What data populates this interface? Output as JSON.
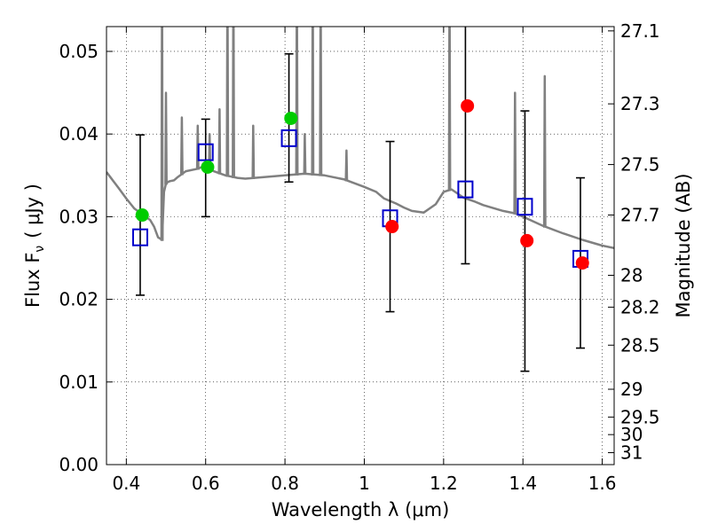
{
  "chart_data": {
    "type": "scatter",
    "xlabel": "Wavelength  λ (μm)",
    "ylabel": "Flux  F",
    "ylabel_sub": "ν",
    "ylabel_unit": "( μJy )",
    "ylabel_right": "Magnitude (AB)",
    "xlim": [
      0.35,
      1.63
    ],
    "ylim": [
      0.0,
      0.053
    ],
    "grid": true,
    "x_ticks": [
      {
        "value": 0.4,
        "label": "0.4"
      },
      {
        "value": 0.6,
        "label": "0.6"
      },
      {
        "value": 0.8,
        "label": "0.8"
      },
      {
        "value": 1.0,
        "label": "1"
      },
      {
        "value": 1.2,
        "label": "1.2"
      },
      {
        "value": 1.4,
        "label": "1.4"
      },
      {
        "value": 1.6,
        "label": "1.6"
      }
    ],
    "y_ticks": [
      {
        "value": 0.0,
        "label": "0.00"
      },
      {
        "value": 0.01,
        "label": "0.01"
      },
      {
        "value": 0.02,
        "label": "0.02"
      },
      {
        "value": 0.03,
        "label": "0.03"
      },
      {
        "value": 0.04,
        "label": "0.04"
      },
      {
        "value": 0.05,
        "label": "0.05"
      }
    ],
    "mag_ticks": [
      {
        "value": 27.1,
        "label": "27.1"
      },
      {
        "value": 27.3,
        "label": "27.3"
      },
      {
        "value": 27.5,
        "label": "27.5"
      },
      {
        "value": 27.7,
        "label": "27.7"
      },
      {
        "value": 28.0,
        "label": "28"
      },
      {
        "value": 28.2,
        "label": "28.2"
      },
      {
        "value": 28.5,
        "label": "28.5"
      },
      {
        "value": 29.0,
        "label": "29"
      },
      {
        "value": 29.5,
        "label": "29.5"
      },
      {
        "value": 30.0,
        "label": "30"
      },
      {
        "value": 31.0,
        "label": "31"
      }
    ],
    "series": [
      {
        "kind": "line",
        "color": "#808080",
        "x": [
          0.35,
          0.38,
          0.4,
          0.42,
          0.44,
          0.46,
          0.47,
          0.48,
          0.49,
          0.495,
          0.5,
          0.505,
          0.51,
          0.52,
          0.53,
          0.55,
          0.58,
          0.6,
          0.62,
          0.65,
          0.68,
          0.7,
          0.75,
          0.8,
          0.85,
          0.9,
          0.95,
          1.0,
          1.03,
          1.05,
          1.08,
          1.1,
          1.12,
          1.15,
          1.18,
          1.2,
          1.22,
          1.25,
          1.28,
          1.3,
          1.35,
          1.38,
          1.4,
          1.45,
          1.5,
          1.55,
          1.6,
          1.63
        ],
        "y": [
          0.0354,
          0.0335,
          0.0322,
          0.031,
          0.0303,
          0.0296,
          0.0288,
          0.0275,
          0.0272,
          0.033,
          0.034,
          0.0342,
          0.0343,
          0.0344,
          0.0348,
          0.0355,
          0.0358,
          0.0362,
          0.0355,
          0.035,
          0.0347,
          0.0346,
          0.0348,
          0.035,
          0.0352,
          0.035,
          0.0345,
          0.0336,
          0.033,
          0.0322,
          0.0316,
          0.0311,
          0.0307,
          0.0305,
          0.0315,
          0.033,
          0.0333,
          0.0323,
          0.0318,
          0.0314,
          0.0307,
          0.0304,
          0.03,
          0.0289,
          0.028,
          0.0272,
          0.0265,
          0.0262
        ]
      },
      {
        "kind": "emission",
        "color": "#808080",
        "lines": [
          {
            "x": 0.49,
            "y": 0.06
          },
          {
            "x": 0.5,
            "y": 0.045
          },
          {
            "x": 0.54,
            "y": 0.042
          },
          {
            "x": 0.58,
            "y": 0.041
          },
          {
            "x": 0.61,
            "y": 0.04
          },
          {
            "x": 0.635,
            "y": 0.043
          },
          {
            "x": 0.655,
            "y": 0.06
          },
          {
            "x": 0.67,
            "y": 0.06
          },
          {
            "x": 0.72,
            "y": 0.041
          },
          {
            "x": 0.83,
            "y": 0.06
          },
          {
            "x": 0.85,
            "y": 0.04
          },
          {
            "x": 0.87,
            "y": 0.06
          },
          {
            "x": 0.89,
            "y": 0.06
          },
          {
            "x": 0.955,
            "y": 0.038
          },
          {
            "x": 1.215,
            "y": 0.06
          },
          {
            "x": 1.38,
            "y": 0.045
          },
          {
            "x": 1.455,
            "y": 0.047
          }
        ]
      },
      {
        "kind": "points",
        "marker": "square",
        "color": "#0000cc",
        "x": [
          0.435,
          0.6,
          0.81,
          1.065,
          1.255,
          1.405,
          1.545
        ],
        "y": [
          0.0275,
          0.0378,
          0.0395,
          0.0298,
          0.0333,
          0.0312,
          0.0249
        ],
        "yerr_low": [
          0.0205,
          0.03,
          0.0342,
          0.0185,
          0.0243,
          0.0113,
          0.0141
        ],
        "yerr_high": [
          0.0399,
          0.0418,
          0.0497,
          0.0391,
          0.058,
          0.0428,
          0.0347
        ]
      },
      {
        "kind": "points",
        "marker": "circle",
        "color": "#00cc00",
        "x": [
          0.44,
          0.605,
          0.815
        ],
        "y": [
          0.0302,
          0.036,
          0.0419
        ]
      },
      {
        "kind": "points",
        "marker": "circle",
        "color": "#ff0000",
        "x": [
          1.07,
          1.26,
          1.41,
          1.55
        ],
        "y": [
          0.0288,
          0.0434,
          0.0271,
          0.0244
        ]
      }
    ]
  }
}
